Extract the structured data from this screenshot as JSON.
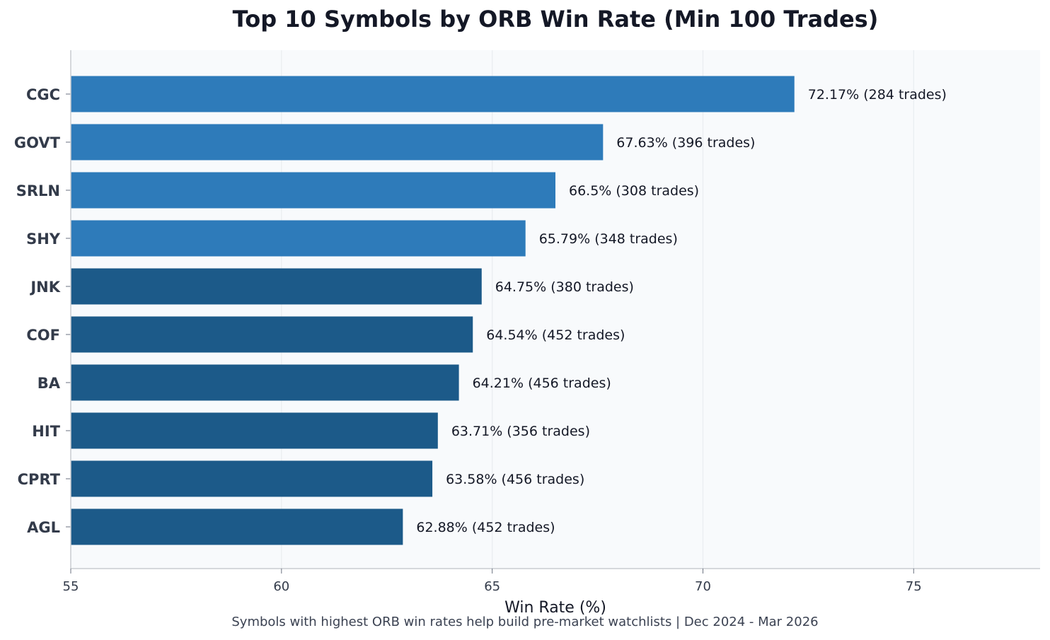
{
  "chart_data": {
    "type": "bar",
    "orientation": "horizontal",
    "title": "Top 10 Symbols by ORB Win Rate (Min 100 Trades)",
    "xlabel": "Win Rate (%)",
    "ylabel": "",
    "caption": "Symbols with highest ORB win rates help build pre-market watchlists | Dec 2024 - Mar 2026",
    "xlim": [
      55,
      78
    ],
    "xticks": [
      55,
      60,
      65,
      70,
      75
    ],
    "grid": "vertical",
    "categories": [
      "CGC",
      "GOVT",
      "SRLN",
      "SHY",
      "JNK",
      "COF",
      "BA",
      "HIT",
      "CPRT",
      "AGL"
    ],
    "values": [
      72.17,
      67.63,
      66.5,
      65.79,
      64.75,
      64.54,
      64.21,
      63.71,
      63.58,
      62.88
    ],
    "trades": [
      284,
      396,
      308,
      348,
      380,
      452,
      456,
      356,
      456,
      452
    ],
    "data_labels": [
      "72.17% (284 trades)",
      "67.63% (396 trades)",
      "66.5% (308 trades)",
      "65.79% (348 trades)",
      "64.75% (380 trades)",
      "64.54% (452 trades)",
      "64.21% (456 trades)",
      "63.71% (356 trades)",
      "63.58% (456 trades)",
      "62.88% (452 trades)"
    ],
    "colors": {
      "bar_light": "#2e7bba",
      "bar_dark": "#1c5a89",
      "plot_background": "#f8fafc",
      "grid": "#e3e7ec",
      "axis": "#c8ccd1"
    },
    "highlight_count": 4
  }
}
